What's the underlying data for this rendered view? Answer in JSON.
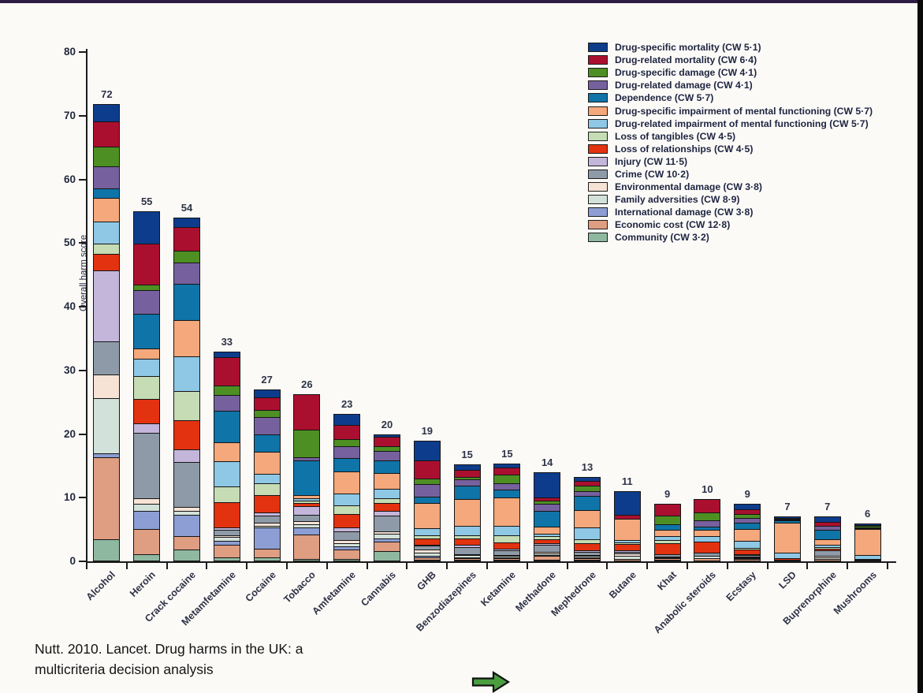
{
  "page": {
    "background": "#fbfaf7",
    "top_strip_color": "#2e1d42",
    "right_strip_color": "#0a0a0a"
  },
  "caption": {
    "line1": "Nutt. 2010. Lancet. Drug harms in the UK: a",
    "line2": "multicriteria decision analysis"
  },
  "arrow": {
    "fill": "#4a9e3f",
    "stroke": "#111111"
  },
  "chart_data": {
    "type": "bar",
    "stacked": true,
    "ylabel": "Overall harm score",
    "ylim": [
      0,
      80
    ],
    "yticks": [
      0,
      10,
      20,
      30,
      40,
      50,
      60,
      70,
      80
    ],
    "grid": false,
    "legend_position": "top-right",
    "categories": [
      "Alcohol",
      "Heroin",
      "Crack cocaine",
      "Metamfetamine",
      "Cocaine",
      "Tobacco",
      "Amfetamine",
      "Cannabis",
      "GHB",
      "Benzodiazepines",
      "Ketamine",
      "Methadone",
      "Mephedrone",
      "Butane",
      "Khat",
      "Anabolic steroids",
      "Ecstasy",
      "LSD",
      "Buprenorphine",
      "Mushrooms"
    ],
    "totals": [
      72,
      55,
      54,
      33,
      27,
      26,
      23,
      20,
      19,
      15,
      15,
      14,
      13,
      11,
      9,
      10,
      9,
      7,
      7,
      6
    ],
    "series": [
      {
        "name": "Drug-specific mortality (CW 5·1)",
        "color": "#0e3c8c",
        "values": [
          2.6,
          5.0,
          1.4,
          0.8,
          1.1,
          0.0,
          1.6,
          0.3,
          3.1,
          0.7,
          0.5,
          3.9,
          0.5,
          3.6,
          0.0,
          0.0,
          0.7,
          0.1,
          0.7,
          0.1
        ]
      },
      {
        "name": "Drug-related mortality (CW 6·4)",
        "color": "#ab0f2f",
        "values": [
          4.0,
          6.4,
          3.7,
          4.5,
          2.0,
          5.5,
          2.2,
          1.5,
          2.9,
          1.2,
          1.1,
          0.6,
          0.7,
          0.7,
          1.7,
          2.1,
          0.8,
          0.1,
          0.6,
          0.1
        ]
      },
      {
        "name": "Drug-specific damage (CW 4·1)",
        "color": "#4e8f24",
        "values": [
          3.1,
          0.9,
          1.9,
          1.5,
          1.2,
          4.3,
          1.1,
          0.8,
          0.9,
          0.3,
          1.4,
          0.4,
          0.9,
          0.0,
          1.5,
          1.2,
          0.6,
          0.1,
          0.0,
          0.2
        ]
      },
      {
        "name": "Drug-related damage (CW 4·1)",
        "color": "#76619e",
        "values": [
          3.5,
          3.8,
          3.3,
          2.5,
          2.7,
          0.5,
          1.9,
          1.5,
          1.9,
          1.0,
          1.0,
          1.2,
          0.8,
          0.0,
          0.0,
          1.0,
          0.8,
          0.1,
          0.7,
          0.1
        ]
      },
      {
        "name": "Dependence (CW 5·7)",
        "color": "#0f74a8",
        "values": [
          1.5,
          5.4,
          5.8,
          5.0,
          2.7,
          5.5,
          2.2,
          2.0,
          1.0,
          2.2,
          1.2,
          2.5,
          2.3,
          0.0,
          0.9,
          0.6,
          1.0,
          0.3,
          1.5,
          0.2
        ]
      },
      {
        "name": "Drug-specific impairment of mental functioning (CW 5·7)",
        "color": "#f4a87b",
        "values": [
          3.7,
          1.7,
          5.7,
          3.0,
          3.5,
          0.5,
          3.5,
          2.5,
          4.1,
          4.3,
          4.6,
          1.2,
          2.8,
          3.4,
          1.0,
          1.0,
          2.0,
          5.0,
          1.0,
          4.4
        ]
      },
      {
        "name": "Drug-related impairment of mental functioning (CW 5·7)",
        "color": "#8ec8e5",
        "values": [
          3.5,
          2.7,
          5.4,
          4.0,
          1.5,
          0.4,
          1.9,
          1.5,
          1.1,
          1.5,
          1.6,
          0.3,
          1.9,
          0.4,
          0.6,
          0.8,
          1.2,
          1.0,
          0.3,
          0.6
        ]
      },
      {
        "name": "Loss of tangibles (CW 4·5)",
        "color": "#c5dcb4",
        "values": [
          1.5,
          3.6,
          4.7,
          2.5,
          1.9,
          0.4,
          1.3,
          0.8,
          0.5,
          0.5,
          1.1,
          0.5,
          0.6,
          0.3,
          0.6,
          0.0,
          0.2,
          0.0,
          0.3,
          0.0
        ]
      },
      {
        "name": "Loss of relationships (CW 4·5)",
        "color": "#e23210",
        "values": [
          2.7,
          3.9,
          4.6,
          4.0,
          2.8,
          0.5,
          2.2,
          1.2,
          1.0,
          1.1,
          1.0,
          0.7,
          1.2,
          0.9,
          1.8,
          1.8,
          0.8,
          0.2,
          0.2,
          0.1
        ]
      },
      {
        "name": "Injury (CW 11·5)",
        "color": "#c4b5db",
        "values": [
          11.2,
          1.5,
          1.9,
          0.3,
          0.5,
          1.3,
          0.6,
          0.8,
          0.2,
          0.3,
          0.2,
          0.2,
          0.2,
          0.3,
          0.0,
          0.0,
          0.1,
          0.0,
          0.0,
          0.0
        ]
      },
      {
        "name": "Crime (CW 10·2)",
        "color": "#8e9aa7",
        "values": [
          5.2,
          10.3,
          7.2,
          0.9,
          1.1,
          1.1,
          1.4,
          2.5,
          0.6,
          1.2,
          0.8,
          1.2,
          0.5,
          0.3,
          0.3,
          0.6,
          0.2,
          0.1,
          1.0,
          0.0
        ]
      },
      {
        "name": "Environmental damage (CW 3·8)",
        "color": "#f6e3d6",
        "values": [
          3.7,
          0.8,
          0.6,
          0.3,
          0.5,
          0.5,
          0.4,
          0.3,
          0.5,
          0.1,
          0.1,
          0.2,
          0.1,
          0.4,
          0.1,
          0.0,
          0.1,
          0.0,
          0.2,
          0.0
        ]
      },
      {
        "name": "Family adversities (CW 8·9)",
        "color": "#d2e1da",
        "values": [
          8.7,
          1.2,
          0.6,
          0.6,
          0.3,
          0.4,
          0.6,
          0.8,
          0.5,
          0.3,
          0.2,
          0.3,
          0.2,
          0.4,
          0.2,
          0.3,
          0.2,
          0.0,
          0.2,
          0.1
        ]
      },
      {
        "name": "International damage (CW 3·8)",
        "color": "#8c9ed3",
        "values": [
          0.6,
          2.8,
          3.3,
          0.6,
          3.3,
          1.2,
          0.5,
          0.5,
          0.2,
          0.1,
          0.1,
          0.1,
          0.1,
          0.0,
          0.0,
          0.0,
          0.1,
          0.0,
          0.0,
          0.0
        ]
      },
      {
        "name": "Economic cost (CW 12·8)",
        "color": "#df9d82",
        "values": [
          13.0,
          4.0,
          2.2,
          2.0,
          1.4,
          3.9,
          1.4,
          1.5,
          0.4,
          0.3,
          0.3,
          0.6,
          0.3,
          0.3,
          0.2,
          0.4,
          0.2,
          0.0,
          0.3,
          0.0
        ]
      },
      {
        "name": "Community (CW 3·2)",
        "color": "#8fb8a0",
        "values": [
          3.3,
          1.0,
          1.7,
          0.5,
          0.5,
          0.2,
          0.3,
          1.5,
          0.1,
          0.1,
          0.1,
          0.1,
          0.1,
          0.0,
          0.1,
          0.0,
          0.0,
          0.0,
          0.0,
          0.0
        ]
      }
    ]
  }
}
